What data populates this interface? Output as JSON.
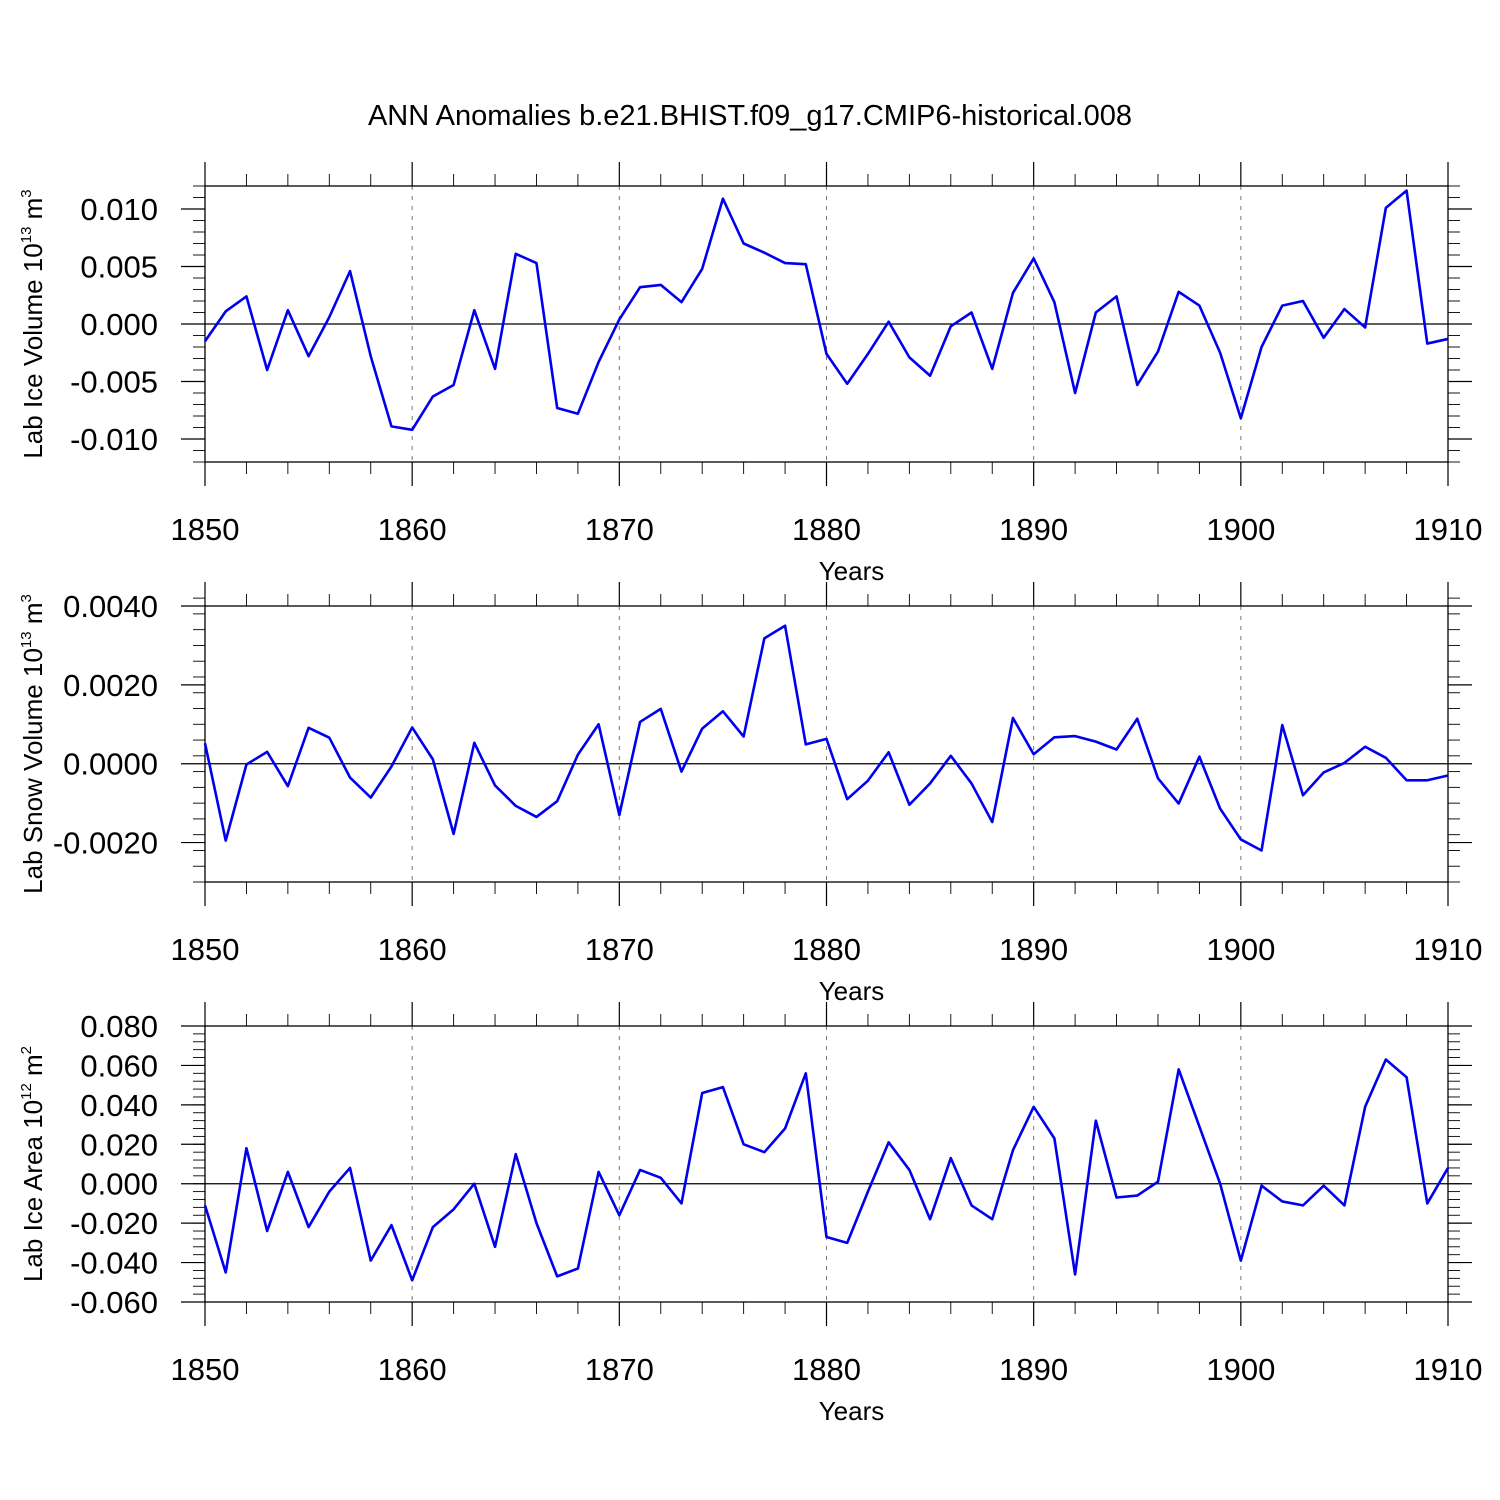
{
  "title": "ANN Anomalies b.e21.BHIST.f09_g17.CMIP6-historical.008",
  "colors": {
    "series": "#0000ee",
    "axis": "#000000",
    "grid": "#777777"
  },
  "chart_data": [
    {
      "type": "line",
      "ylabel": {
        "text": "Lab Ice Volume 10",
        "exp": "13",
        "unit": " m",
        "unit_exp": "3"
      },
      "xlabel": "Years",
      "xlim": [
        1850,
        1910
      ],
      "ylim": [
        -0.012,
        0.012
      ],
      "xticks": [
        1850,
        1860,
        1870,
        1880,
        1890,
        1900,
        1910
      ],
      "xtick_labels": [
        "1850",
        "1860",
        "1870",
        "1880",
        "1890",
        "1900",
        "1910"
      ],
      "yticks": [
        -0.01,
        -0.005,
        0.0,
        0.005,
        0.01
      ],
      "ytick_labels": [
        "-0.010",
        "-0.005",
        "0.000",
        "0.005",
        "0.010"
      ],
      "yminor_step": 0.001,
      "grid": "dashed vertical at major x ticks",
      "x": [
        1850,
        1851,
        1852,
        1853,
        1854,
        1855,
        1856,
        1857,
        1858,
        1859,
        1860,
        1861,
        1862,
        1863,
        1864,
        1865,
        1866,
        1867,
        1868,
        1869,
        1870,
        1871,
        1872,
        1873,
        1874,
        1875,
        1876,
        1877,
        1878,
        1879,
        1880,
        1881,
        1882,
        1883,
        1884,
        1885,
        1886,
        1887,
        1888,
        1889,
        1890,
        1891,
        1892,
        1893,
        1894,
        1895,
        1896,
        1897,
        1898,
        1899,
        1900,
        1901,
        1902,
        1903,
        1904,
        1905,
        1906,
        1907,
        1908,
        1909,
        1910
      ],
      "y": [
        -0.0015,
        0.0011,
        0.0024,
        -0.004,
        0.0012,
        -0.0028,
        0.0006,
        0.0046,
        -0.0028,
        -0.0089,
        -0.0092,
        -0.0063,
        -0.0053,
        0.0012,
        -0.0039,
        0.0061,
        0.0053,
        -0.0073,
        -0.0078,
        -0.0033,
        0.0004,
        0.0032,
        0.0034,
        0.0019,
        0.0048,
        0.0109,
        0.007,
        0.0062,
        0.0053,
        0.0052,
        -0.0026,
        -0.0052,
        -0.0026,
        0.0002,
        -0.0029,
        -0.0045,
        -0.0002,
        0.001,
        -0.0039,
        0.0027,
        0.0057,
        0.0019,
        -0.006,
        0.001,
        0.0024,
        -0.0053,
        -0.0024,
        0.0028,
        0.0016,
        -0.0025,
        -0.0082,
        -0.002,
        0.0016,
        0.002,
        -0.0012,
        0.0013,
        -0.0003,
        0.0101,
        0.0116,
        -0.0017,
        -0.0013
      ]
    },
    {
      "type": "line",
      "ylabel": {
        "text": "Lab Snow Volume 10",
        "exp": "13",
        "unit": " m",
        "unit_exp": "3"
      },
      "xlabel": "Years",
      "xlim": [
        1850,
        1910
      ],
      "ylim": [
        -0.003,
        0.004
      ],
      "xticks": [
        1850,
        1860,
        1870,
        1880,
        1890,
        1900,
        1910
      ],
      "xtick_labels": [
        "1850",
        "1860",
        "1870",
        "1880",
        "1890",
        "1900",
        "1910"
      ],
      "yticks": [
        -0.002,
        0.0,
        0.002,
        0.004
      ],
      "ytick_labels": [
        "-0.0020",
        "0.0000",
        "0.0020",
        "0.0040"
      ],
      "yminor_step": 0.0004,
      "grid": "dashed vertical at major x ticks",
      "x": [
        1850,
        1851,
        1852,
        1853,
        1854,
        1855,
        1856,
        1857,
        1858,
        1859,
        1860,
        1861,
        1862,
        1863,
        1864,
        1865,
        1866,
        1867,
        1868,
        1869,
        1870,
        1871,
        1872,
        1873,
        1874,
        1875,
        1876,
        1877,
        1878,
        1879,
        1880,
        1881,
        1882,
        1883,
        1884,
        1885,
        1886,
        1887,
        1888,
        1889,
        1890,
        1891,
        1892,
        1893,
        1894,
        1895,
        1896,
        1897,
        1898,
        1899,
        1900,
        1901,
        1902,
        1903,
        1904,
        1905,
        1906,
        1907,
        1908,
        1909,
        1910
      ],
      "y": [
        0.00052,
        -0.00195,
        -2e-05,
        0.0003,
        -0.00057,
        0.00091,
        0.00066,
        -0.00035,
        -0.00086,
        -7e-05,
        0.00092,
        0.00011,
        -0.00178,
        0.00053,
        -0.00055,
        -0.00107,
        -0.00135,
        -0.00095,
        0.00023,
        0.001,
        -0.0013,
        0.00106,
        0.00139,
        -0.0002,
        0.00089,
        0.00133,
        0.00069,
        0.00318,
        0.0035,
        0.00049,
        0.00063,
        -0.0009,
        -0.00043,
        0.00029,
        -0.00104,
        -0.0005,
        0.0002,
        -0.0005,
        -0.00148,
        0.00116,
        0.00024,
        0.00067,
        0.0007,
        0.00056,
        0.00036,
        0.00114,
        -0.00037,
        -0.00101,
        0.00018,
        -0.00114,
        -0.00192,
        -0.0022,
        0.00098,
        -0.0008,
        -0.00022,
        2e-05,
        0.00043,
        0.00015,
        -0.00042,
        -0.00042,
        -0.0003
      ]
    },
    {
      "type": "line",
      "ylabel": {
        "text": "Lab Ice Area 10",
        "exp": "12",
        "unit": " m",
        "unit_exp": "2"
      },
      "xlabel": "Years",
      "xlim": [
        1850,
        1910
      ],
      "ylim": [
        -0.06,
        0.08
      ],
      "xticks": [
        1850,
        1860,
        1870,
        1880,
        1890,
        1900,
        1910
      ],
      "xtick_labels": [
        "1850",
        "1860",
        "1870",
        "1880",
        "1890",
        "1900",
        "1910"
      ],
      "yticks": [
        -0.06,
        -0.04,
        -0.02,
        0.0,
        0.02,
        0.04,
        0.06,
        0.08
      ],
      "ytick_labels": [
        "-0.060",
        "-0.040",
        "-0.020",
        "0.000",
        "0.020",
        "0.040",
        "0.060",
        "0.080"
      ],
      "yminor_step": 0.004,
      "grid": "dashed vertical at major x ticks",
      "x": [
        1850,
        1851,
        1852,
        1853,
        1854,
        1855,
        1856,
        1857,
        1858,
        1859,
        1860,
        1861,
        1862,
        1863,
        1864,
        1865,
        1866,
        1867,
        1868,
        1869,
        1870,
        1871,
        1872,
        1873,
        1874,
        1875,
        1876,
        1877,
        1878,
        1879,
        1880,
        1881,
        1882,
        1883,
        1884,
        1885,
        1886,
        1887,
        1888,
        1889,
        1890,
        1891,
        1892,
        1893,
        1894,
        1895,
        1896,
        1897,
        1898,
        1899,
        1900,
        1901,
        1902,
        1903,
        1904,
        1905,
        1906,
        1907,
        1908,
        1909,
        1910
      ],
      "y": [
        -0.011,
        -0.045,
        0.018,
        -0.024,
        0.006,
        -0.022,
        -0.004,
        0.008,
        -0.039,
        -0.021,
        -0.049,
        -0.022,
        -0.013,
        0.0,
        -0.032,
        0.015,
        -0.02,
        -0.047,
        -0.043,
        0.006,
        -0.016,
        0.007,
        0.003,
        -0.01,
        0.046,
        0.049,
        0.02,
        0.016,
        0.028,
        0.056,
        -0.027,
        -0.03,
        -0.004,
        0.021,
        0.007,
        -0.018,
        0.013,
        -0.011,
        -0.018,
        0.017,
        0.039,
        0.023,
        -0.046,
        0.032,
        -0.007,
        -0.006,
        0.001,
        0.058,
        0.029,
        0.0,
        -0.039,
        -0.001,
        -0.009,
        -0.011,
        -0.001,
        -0.011,
        0.039,
        0.063,
        0.054,
        -0.01,
        0.008
      ]
    }
  ]
}
